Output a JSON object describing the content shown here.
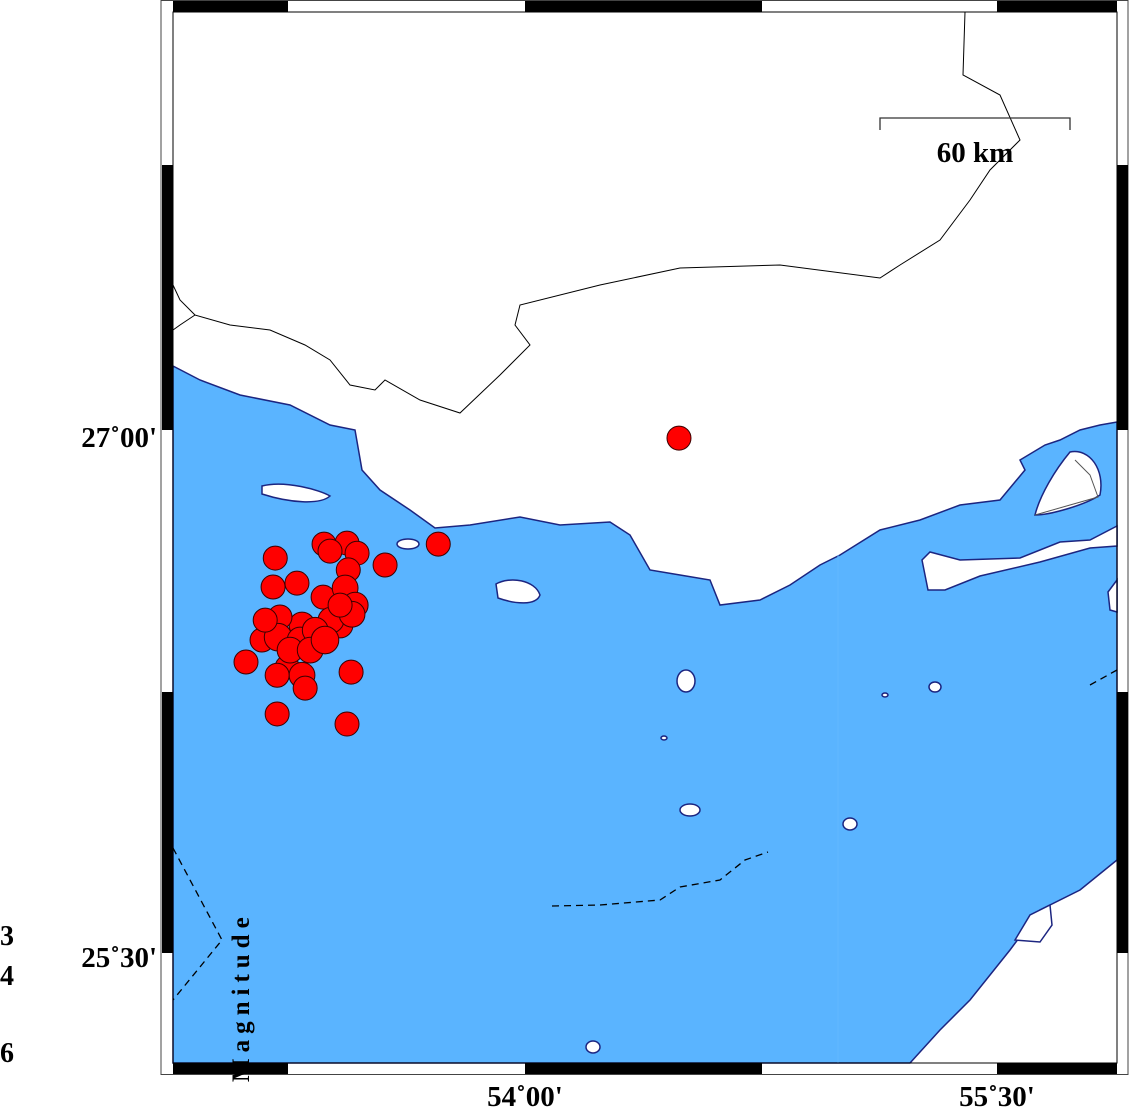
{
  "map": {
    "colors": {
      "water": "#5ab4ff",
      "land": "#ffffff",
      "coastline": "#1c2580",
      "border": "#000000",
      "event": "#ff0000"
    },
    "lon_range": [
      52.881,
      55.881
    ],
    "lat_range": [
      25.185,
      28.199
    ],
    "x_ticks": [
      {
        "lon": 54.0,
        "label": "54˚00'"
      },
      {
        "lon": 55.5,
        "label": "55˚30'"
      }
    ],
    "y_ticks": [
      {
        "lat": 27.0,
        "label": "27˚00'"
      },
      {
        "lat": 25.5,
        "label": "25˚30'"
      }
    ],
    "scale_bar": {
      "label": "60 km"
    },
    "legend": {
      "title": "Magnitude",
      "labels": [
        "3",
        "4",
        "6"
      ]
    },
    "events": [
      {
        "lon": 54.489,
        "lat": 26.977,
        "mag": 4
      },
      {
        "lon": 53.724,
        "lat": 26.673,
        "mag": 4
      },
      {
        "lon": 53.555,
        "lat": 26.613,
        "mag": 4
      },
      {
        "lon": 53.206,
        "lat": 26.633,
        "mag": 4
      },
      {
        "lon": 53.199,
        "lat": 26.55,
        "mag": 4
      },
      {
        "lon": 53.275,
        "lat": 26.561,
        "mag": 4
      },
      {
        "lon": 53.361,
        "lat": 26.673,
        "mag": 4
      },
      {
        "lon": 53.434,
        "lat": 26.676,
        "mag": 4
      },
      {
        "lon": 53.466,
        "lat": 26.647,
        "mag": 4
      },
      {
        "lon": 53.38,
        "lat": 26.653,
        "mag": 4
      },
      {
        "lon": 53.438,
        "lat": 26.599,
        "mag": 4
      },
      {
        "lon": 53.358,
        "lat": 26.521,
        "mag": 4
      },
      {
        "lon": 53.428,
        "lat": 26.547,
        "mag": 4.3
      },
      {
        "lon": 53.46,
        "lat": 26.498,
        "mag": 4.3
      },
      {
        "lon": 53.412,
        "lat": 26.441,
        "mag": 4.3
      },
      {
        "lon": 53.383,
        "lat": 26.455,
        "mag": 4.3
      },
      {
        "lon": 53.291,
        "lat": 26.441,
        "mag": 4.3
      },
      {
        "lon": 53.221,
        "lat": 26.464,
        "mag": 4
      },
      {
        "lon": 53.164,
        "lat": 26.398,
        "mag": 4
      },
      {
        "lon": 53.215,
        "lat": 26.406,
        "mag": 4.6
      },
      {
        "lon": 53.285,
        "lat": 26.398,
        "mag": 4.3
      },
      {
        "lon": 53.333,
        "lat": 26.426,
        "mag": 4.3
      },
      {
        "lon": 53.113,
        "lat": 26.335,
        "mag": 4
      },
      {
        "lon": 53.244,
        "lat": 26.32,
        "mag": 4
      },
      {
        "lon": 53.291,
        "lat": 26.297,
        "mag": 4.3
      },
      {
        "lon": 53.301,
        "lat": 26.26,
        "mag": 4
      },
      {
        "lon": 53.212,
        "lat": 26.297,
        "mag": 4
      },
      {
        "lon": 53.447,
        "lat": 26.306,
        "mag": 4
      },
      {
        "lon": 53.212,
        "lat": 26.186,
        "mag": 4
      },
      {
        "lon": 53.434,
        "lat": 26.157,
        "mag": 4
      },
      {
        "lon": 53.45,
        "lat": 26.472,
        "mag": 4.3
      },
      {
        "lon": 53.412,
        "lat": 26.498,
        "mag": 4
      },
      {
        "lon": 53.253,
        "lat": 26.369,
        "mag": 4.3
      },
      {
        "lon": 53.317,
        "lat": 26.369,
        "mag": 4.3
      },
      {
        "lon": 53.174,
        "lat": 26.455,
        "mag": 4
      },
      {
        "lon": 53.364,
        "lat": 26.398,
        "mag": 4.6
      }
    ]
  }
}
